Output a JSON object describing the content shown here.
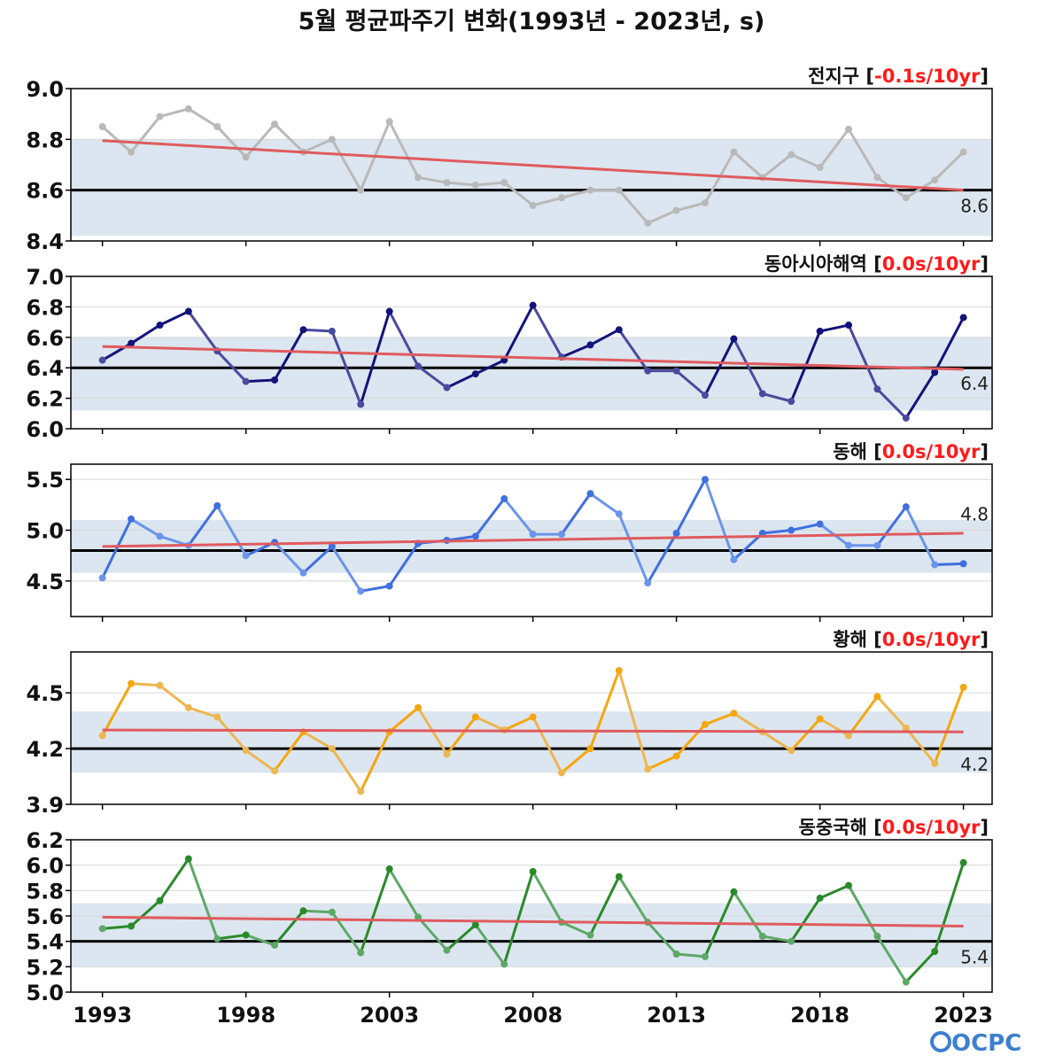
{
  "figure_title": "5월 평균파주기 변화(1993년 - 2023년, s)",
  "logo_text": "OCPC",
  "colors": {
    "trend": "#e05a5e",
    "climatology": "#000000",
    "band": "#dce6f0",
    "trend_text": "#ff1a1a"
  },
  "chart_data": [
    {
      "type": "line",
      "title": "전지구",
      "trend_label": "-0.1s/10yr",
      "color": "#b9b9b9",
      "color_dark": "#b9b9b9",
      "ylim": [
        8.4,
        9.0
      ],
      "yticks": [
        "8.4",
        "8.6",
        "8.8",
        "9.0"
      ],
      "ytick_values": [
        8.4,
        8.6,
        8.8,
        9.0
      ],
      "climatology": 8.6,
      "climatology_label": "8.6",
      "band": [
        8.42,
        8.8
      ],
      "trend": [
        8.795,
        8.6
      ],
      "x": [
        1993,
        1994,
        1995,
        1996,
        1997,
        1998,
        1999,
        2000,
        2001,
        2002,
        2003,
        2004,
        2005,
        2006,
        2007,
        2008,
        2009,
        2010,
        2011,
        2012,
        2013,
        2014,
        2015,
        2016,
        2017,
        2018,
        2019,
        2020,
        2021,
        2022,
        2023
      ],
      "values": [
        8.85,
        8.75,
        8.89,
        8.92,
        8.85,
        8.73,
        8.86,
        8.75,
        8.8,
        8.6,
        8.87,
        8.65,
        8.63,
        8.62,
        8.63,
        8.54,
        8.57,
        8.6,
        8.6,
        8.47,
        8.52,
        8.55,
        8.75,
        8.65,
        8.74,
        8.69,
        8.84,
        8.65,
        8.57,
        8.64,
        8.75
      ]
    },
    {
      "type": "line",
      "title": "동아시아해역",
      "trend_label": "0.0s/10yr",
      "color": "#4a4a9e",
      "color_dark": "#13137a",
      "ylim": [
        6.0,
        7.0
      ],
      "yticks": [
        "6.0",
        "6.2",
        "6.4",
        "6.6",
        "6.8",
        "7.0"
      ],
      "ytick_values": [
        6.0,
        6.2,
        6.4,
        6.6,
        6.8,
        7.0
      ],
      "climatology": 6.4,
      "climatology_label": "6.4",
      "band": [
        6.12,
        6.6
      ],
      "trend": [
        6.54,
        6.39
      ],
      "x": [
        1993,
        1994,
        1995,
        1996,
        1997,
        1998,
        1999,
        2000,
        2001,
        2002,
        2003,
        2004,
        2005,
        2006,
        2007,
        2008,
        2009,
        2010,
        2011,
        2012,
        2013,
        2014,
        2015,
        2016,
        2017,
        2018,
        2019,
        2020,
        2021,
        2022,
        2023
      ],
      "values": [
        6.45,
        6.56,
        6.68,
        6.77,
        6.51,
        6.31,
        6.32,
        6.65,
        6.64,
        6.16,
        6.77,
        6.41,
        6.27,
        6.36,
        6.45,
        6.81,
        6.47,
        6.55,
        6.65,
        6.38,
        6.38,
        6.22,
        6.59,
        6.23,
        6.18,
        6.64,
        6.68,
        6.26,
        6.07,
        6.37,
        6.73
      ]
    },
    {
      "type": "line",
      "title": "동해",
      "trend_label": "0.0s/10yr",
      "color": "#6b95ea",
      "color_dark": "#3f6fe0",
      "ylim": [
        4.15,
        5.65
      ],
      "yticks": [
        "4.5",
        "5.0",
        "5.5"
      ],
      "ytick_values": [
        4.5,
        5.0,
        5.5
      ],
      "climatology": 4.8,
      "climatology_label": "4.8",
      "band": [
        4.58,
        5.1
      ],
      "trend": [
        4.84,
        4.97
      ],
      "x": [
        1993,
        1994,
        1995,
        1996,
        1997,
        1998,
        1999,
        2000,
        2001,
        2002,
        2003,
        2004,
        2005,
        2006,
        2007,
        2008,
        2009,
        2010,
        2011,
        2012,
        2013,
        2014,
        2015,
        2016,
        2017,
        2018,
        2019,
        2020,
        2021,
        2022,
        2023
      ],
      "values": [
        4.53,
        5.11,
        4.94,
        4.85,
        5.24,
        4.75,
        4.88,
        4.58,
        4.84,
        4.4,
        4.45,
        4.87,
        4.9,
        4.94,
        5.31,
        4.96,
        4.96,
        5.36,
        5.16,
        4.48,
        4.97,
        5.5,
        4.71,
        4.97,
        5.0,
        5.06,
        4.85,
        4.85,
        5.23,
        4.66,
        4.67
      ]
    },
    {
      "type": "line",
      "title": "황해",
      "trend_label": "0.0s/10yr",
      "color": "#ebb751",
      "color_dark": "#f5a60f",
      "ylim": [
        3.9,
        4.72
      ],
      "yticks": [
        "3.9",
        "4.2",
        "4.5"
      ],
      "ytick_values": [
        3.9,
        4.2,
        4.5
      ],
      "climatology": 4.2,
      "climatology_label": "4.2",
      "band": [
        4.07,
        4.4
      ],
      "trend": [
        4.3,
        4.29
      ],
      "x": [
        1993,
        1994,
        1995,
        1996,
        1997,
        1998,
        1999,
        2000,
        2001,
        2002,
        2003,
        2004,
        2005,
        2006,
        2007,
        2008,
        2009,
        2010,
        2011,
        2012,
        2013,
        2014,
        2015,
        2016,
        2017,
        2018,
        2019,
        2020,
        2021,
        2022,
        2023
      ],
      "values": [
        4.27,
        4.55,
        4.54,
        4.42,
        4.37,
        4.19,
        4.08,
        4.29,
        4.2,
        3.97,
        4.29,
        4.42,
        4.17,
        4.37,
        4.3,
        4.37,
        4.07,
        4.2,
        4.62,
        4.09,
        4.16,
        4.33,
        4.39,
        4.29,
        4.19,
        4.36,
        4.27,
        4.48,
        4.31,
        4.12,
        4.53
      ]
    },
    {
      "type": "line",
      "title": "동중국해",
      "trend_label": "0.0s/10yr",
      "color": "#5ea867",
      "color_dark": "#2a8a2a",
      "ylim": [
        5.0,
        6.2
      ],
      "yticks": [
        "5.0",
        "5.2",
        "5.4",
        "5.6",
        "5.8",
        "6.0",
        "6.2"
      ],
      "ytick_values": [
        5.0,
        5.2,
        5.4,
        5.6,
        5.8,
        6.0,
        6.2
      ],
      "climatology": 5.4,
      "climatology_label": "5.4",
      "band": [
        5.2,
        5.7
      ],
      "trend": [
        5.59,
        5.52
      ],
      "x": [
        1993,
        1994,
        1995,
        1996,
        1997,
        1998,
        1999,
        2000,
        2001,
        2002,
        2003,
        2004,
        2005,
        2006,
        2007,
        2008,
        2009,
        2010,
        2011,
        2012,
        2013,
        2014,
        2015,
        2016,
        2017,
        2018,
        2019,
        2020,
        2021,
        2022,
        2023
      ],
      "values": [
        5.5,
        5.52,
        5.72,
        6.05,
        5.42,
        5.45,
        5.37,
        5.64,
        5.63,
        5.31,
        5.97,
        5.59,
        5.33,
        5.53,
        5.22,
        5.95,
        5.55,
        5.45,
        5.91,
        5.55,
        5.3,
        5.28,
        5.79,
        5.44,
        5.4,
        5.74,
        5.84,
        5.44,
        5.08,
        5.32,
        6.02
      ]
    }
  ],
  "x_axis": {
    "ticks": [
      "1993",
      "1998",
      "2003",
      "2008",
      "2013",
      "2018",
      "2023"
    ],
    "tick_values": [
      1993,
      1998,
      2003,
      2008,
      2013,
      2018,
      2023
    ],
    "xlim": [
      1991.9,
      2024.0
    ]
  }
}
